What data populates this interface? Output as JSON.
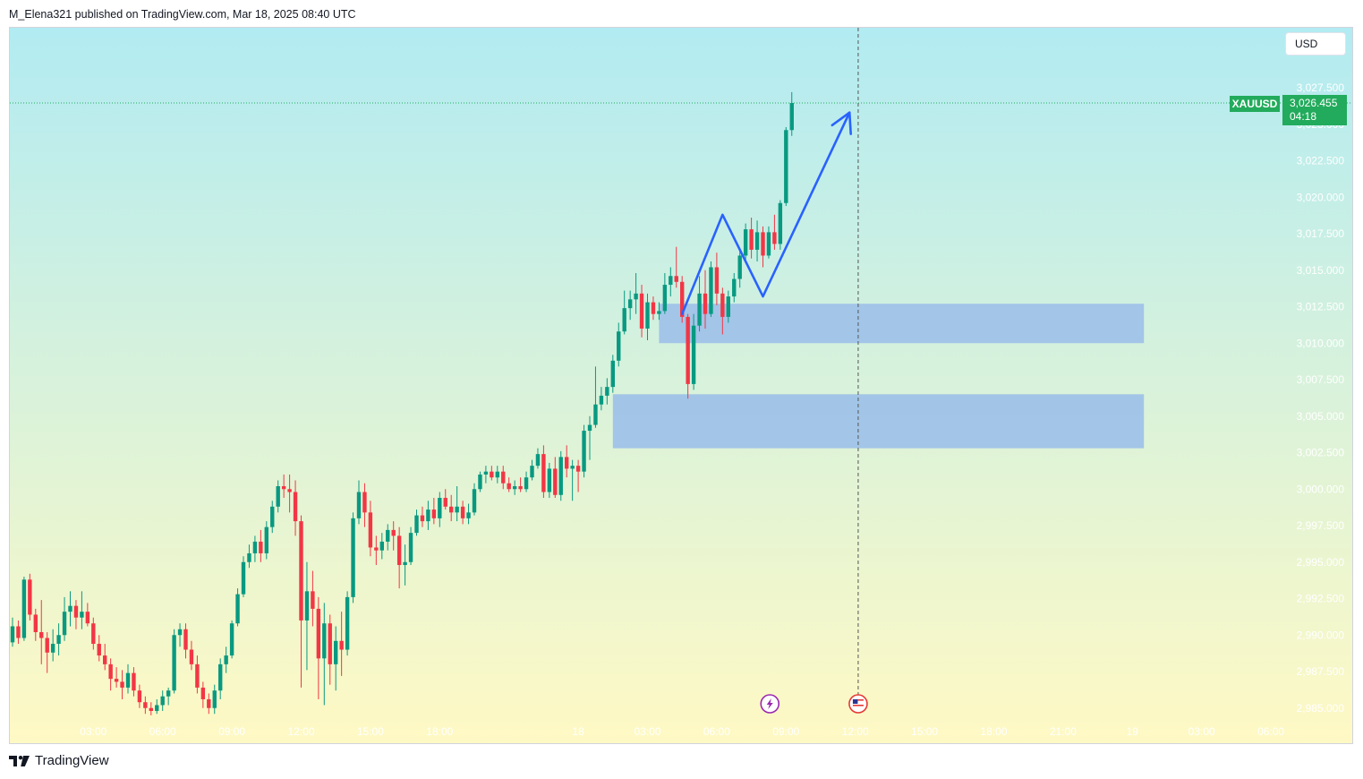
{
  "header": {
    "published_text": "M_Elena321 published on TradingView.com, Mar 18, 2025 08:40 UTC"
  },
  "currency_button": {
    "label": "USD"
  },
  "symbol": {
    "name": "XAUUSD",
    "last_price": "3,026.455",
    "countdown": "04:18"
  },
  "footer": {
    "brand": "TradingView",
    "logo_icon": "tradingview-logo-icon"
  },
  "colors": {
    "up": "#089981",
    "down": "#f23645",
    "zone": "#9fc2e8",
    "arrow": "#2962ff",
    "price_tag": "#22ab5c",
    "bg_top": "#b2ebf2",
    "bg_bottom": "#fff9c4"
  },
  "events": [
    {
      "icon": "lightning-event-icon",
      "time": "08:40"
    },
    {
      "icon": "us-flag-event-icon",
      "time": "12:00"
    }
  ],
  "chart_data": {
    "type": "candlestick",
    "symbol": "XAUUSD",
    "y_axis": {
      "ylim": [
        2984.5,
        3028.5
      ],
      "ticks": [
        3027.5,
        3025.0,
        3022.5,
        3020.0,
        3017.5,
        3015.0,
        3012.5,
        3010.0,
        3007.5,
        3005.0,
        3002.5,
        3000.0,
        2997.5,
        2995.0,
        2992.5,
        2990.0,
        2987.5,
        2985.0
      ],
      "tick_labels": [
        "3,027.500",
        "3,025.000",
        "3,022.500",
        "3,020.000",
        "3,017.500",
        "3,015.000",
        "3,012.500",
        "3,010.000",
        "3,007.500",
        "3,005.000",
        "3,002.500",
        "3,000.000",
        "2,997.500",
        "2,995.000",
        "2,992.500",
        "2,990.000",
        "2,987.500",
        "2,985.000"
      ]
    },
    "x_axis": {
      "ticks": [
        {
          "label": "03:00",
          "bar": 14
        },
        {
          "label": "06:00",
          "bar": 26
        },
        {
          "label": "09:00",
          "bar": 38
        },
        {
          "label": "12:00",
          "bar": 50
        },
        {
          "label": "15:00",
          "bar": 62
        },
        {
          "label": "18:00",
          "bar": 74
        },
        {
          "label": "18",
          "bar": 98
        },
        {
          "label": "03:00",
          "bar": 110
        },
        {
          "label": "06:00",
          "bar": 122
        },
        {
          "label": "09:00",
          "bar": 134
        },
        {
          "label": "12:00",
          "bar": 146
        },
        {
          "label": "15:00",
          "bar": 158
        },
        {
          "label": "18:00",
          "bar": 170
        },
        {
          "label": "21:00",
          "bar": 182
        },
        {
          "label": "19",
          "bar": 194
        },
        {
          "label": "03:00",
          "bar": 206
        },
        {
          "label": "06:00",
          "bar": 218
        }
      ]
    },
    "candles": [
      [
        2989.5,
        2991.2,
        2989.2,
        2990.6
      ],
      [
        2990.6,
        2991.0,
        2989.4,
        2989.8
      ],
      [
        2989.8,
        2994.0,
        2989.6,
        2993.8
      ],
      [
        2993.8,
        2994.2,
        2991.0,
        2991.4
      ],
      [
        2991.4,
        2991.8,
        2989.6,
        2990.2
      ],
      [
        2990.2,
        2992.4,
        2988.0,
        2989.8
      ],
      [
        2989.8,
        2990.2,
        2987.4,
        2988.8
      ],
      [
        2988.8,
        2990.4,
        2988.2,
        2989.4
      ],
      [
        2989.4,
        2990.8,
        2988.6,
        2990.0
      ],
      [
        2990.0,
        2992.6,
        2989.6,
        2991.6
      ],
      [
        2991.6,
        2993.0,
        2990.6,
        2992.0
      ],
      [
        2992.0,
        2992.4,
        2990.4,
        2991.2
      ],
      [
        2991.2,
        2993.0,
        2990.4,
        2991.6
      ],
      [
        2991.6,
        2992.2,
        2990.6,
        2990.8
      ],
      [
        2990.8,
        2991.2,
        2989.0,
        2989.4
      ],
      [
        2989.4,
        2990.0,
        2988.2,
        2988.6
      ],
      [
        2988.6,
        2989.4,
        2987.6,
        2988.0
      ],
      [
        2988.0,
        2988.4,
        2986.2,
        2987.0
      ],
      [
        2987.0,
        2987.8,
        2986.4,
        2986.8
      ],
      [
        2986.8,
        2987.6,
        2985.6,
        2986.4
      ],
      [
        2986.4,
        2988.0,
        2986.0,
        2987.4
      ],
      [
        2987.4,
        2987.8,
        2985.8,
        2986.2
      ],
      [
        2986.2,
        2986.6,
        2985.0,
        2985.4
      ],
      [
        2985.4,
        2985.8,
        2984.6,
        2985.0
      ],
      [
        2985.0,
        2985.4,
        2984.5,
        2984.8
      ],
      [
        2984.8,
        2985.6,
        2984.6,
        2985.2
      ],
      [
        2985.2,
        2986.2,
        2984.8,
        2985.8
      ],
      [
        2985.8,
        2986.4,
        2985.2,
        2986.2
      ],
      [
        2986.2,
        2990.4,
        2986.0,
        2990.0
      ],
      [
        2990.0,
        2990.8,
        2989.2,
        2990.4
      ],
      [
        2990.4,
        2990.8,
        2988.4,
        2989.0
      ],
      [
        2989.0,
        2989.6,
        2987.6,
        2988.0
      ],
      [
        2988.0,
        2988.6,
        2986.0,
        2986.4
      ],
      [
        2986.4,
        2986.8,
        2985.0,
        2985.6
      ],
      [
        2985.6,
        2986.0,
        2984.6,
        2985.0
      ],
      [
        2985.0,
        2986.6,
        2984.6,
        2986.2
      ],
      [
        2986.2,
        2988.4,
        2985.6,
        2988.0
      ],
      [
        2988.0,
        2989.2,
        2987.4,
        2988.6
      ],
      [
        2988.6,
        2991.0,
        2988.4,
        2990.8
      ],
      [
        2990.8,
        2993.2,
        2990.6,
        2992.8
      ],
      [
        2992.8,
        2995.4,
        2992.6,
        2995.0
      ],
      [
        2995.0,
        2996.2,
        2994.6,
        2995.6
      ],
      [
        2995.6,
        2996.8,
        2995.0,
        2996.4
      ],
      [
        2996.4,
        2997.2,
        2995.0,
        2995.6
      ],
      [
        2995.6,
        2997.8,
        2995.2,
        2997.4
      ],
      [
        2997.4,
        2999.2,
        2997.0,
        2998.8
      ],
      [
        2998.8,
        3000.6,
        2998.4,
        3000.2
      ],
      [
        3000.2,
        3001.0,
        2999.4,
        3000.0
      ],
      [
        3000.0,
        3001.0,
        2998.4,
        2999.8
      ],
      [
        2999.8,
        3000.6,
        2996.8,
        2997.8
      ],
      [
        2997.8,
        2998.2,
        2986.4,
        2991.0
      ],
      [
        2991.0,
        2995.0,
        2987.6,
        2993.0
      ],
      [
        2993.0,
        2994.4,
        2990.6,
        2991.8
      ],
      [
        2991.8,
        2992.6,
        2985.6,
        2988.4
      ],
      [
        2988.4,
        2992.2,
        2985.2,
        2990.8
      ],
      [
        2990.8,
        2991.4,
        2986.6,
        2988.0
      ],
      [
        2988.0,
        2990.6,
        2986.2,
        2989.6
      ],
      [
        2989.6,
        2991.6,
        2987.2,
        2989.0
      ],
      [
        2989.0,
        2993.0,
        2988.6,
        2992.6
      ],
      [
        2992.6,
        2998.4,
        2992.2,
        2998.0
      ],
      [
        2998.0,
        3000.6,
        2997.6,
        2999.8
      ],
      [
        2999.8,
        3000.4,
        2997.4,
        2998.4
      ],
      [
        2998.4,
        2999.2,
        2995.4,
        2996.0
      ],
      [
        2996.0,
        2996.8,
        2994.8,
        2995.8
      ],
      [
        2995.8,
        2997.0,
        2995.2,
        2996.4
      ],
      [
        2996.4,
        2997.6,
        2995.8,
        2997.2
      ],
      [
        2997.2,
        2997.8,
        2995.8,
        2996.8
      ],
      [
        2996.8,
        2997.4,
        2993.2,
        2994.8
      ],
      [
        2994.8,
        2996.2,
        2993.4,
        2995.0
      ],
      [
        2995.0,
        2997.4,
        2994.8,
        2997.0
      ],
      [
        2997.0,
        2998.6,
        2996.8,
        2998.2
      ],
      [
        2998.2,
        2998.8,
        2997.4,
        2997.8
      ],
      [
        2997.8,
        2999.2,
        2997.2,
        2998.6
      ],
      [
        2998.6,
        2999.4,
        2997.6,
        2998.0
      ],
      [
        2998.0,
        2999.8,
        2997.4,
        2999.4
      ],
      [
        2999.4,
        3000.0,
        2998.6,
        2998.8
      ],
      [
        2998.8,
        2999.6,
        2997.8,
        2998.4
      ],
      [
        2998.4,
        3000.2,
        2997.8,
        2998.8
      ],
      [
        2998.8,
        2999.2,
        2997.6,
        2998.0
      ],
      [
        2998.0,
        2999.0,
        2997.6,
        2998.4
      ],
      [
        2998.4,
        3000.4,
        2998.2,
        3000.0
      ],
      [
        3000.0,
        3001.2,
        2999.8,
        3001.0
      ],
      [
        3001.0,
        3001.6,
        3000.4,
        3001.2
      ],
      [
        3001.2,
        3001.6,
        3000.6,
        3000.8
      ],
      [
        3000.8,
        3001.6,
        3000.4,
        3001.2
      ],
      [
        3001.2,
        3001.6,
        3000.0,
        3000.4
      ],
      [
        3000.4,
        3000.8,
        2999.8,
        3000.0
      ],
      [
        3000.0,
        3000.6,
        2999.6,
        3000.2
      ],
      [
        3000.2,
        3000.8,
        2999.8,
        3000.0
      ],
      [
        3000.0,
        3001.2,
        2999.8,
        3000.8
      ],
      [
        3000.8,
        3002.0,
        3000.6,
        3001.6
      ],
      [
        3001.6,
        3002.8,
        3001.4,
        3002.4
      ],
      [
        3002.4,
        3003.0,
        2999.4,
        2999.8
      ],
      [
        2999.8,
        3001.8,
        2999.4,
        3001.4
      ],
      [
        3001.4,
        3002.2,
        2999.4,
        2999.6
      ],
      [
        2999.6,
        3002.6,
        2999.2,
        3002.2
      ],
      [
        3002.2,
        3003.0,
        3000.8,
        3001.4
      ],
      [
        3001.4,
        3002.0,
        2999.2,
        3001.6
      ],
      [
        3001.6,
        3002.0,
        2999.8,
        3001.2
      ],
      [
        3001.2,
        3004.4,
        3000.8,
        3004.0
      ],
      [
        3004.0,
        3005.0,
        3002.0,
        3004.4
      ],
      [
        3004.4,
        3008.4,
        3004.2,
        3005.8
      ],
      [
        3005.8,
        3007.0,
        3005.4,
        3006.4
      ],
      [
        3006.4,
        3007.6,
        3005.8,
        3007.0
      ],
      [
        3007.0,
        3009.2,
        3006.6,
        3008.8
      ],
      [
        3008.8,
        3011.4,
        3008.4,
        3010.8
      ],
      [
        3010.8,
        3013.6,
        3010.6,
        3012.4
      ],
      [
        3012.4,
        3013.6,
        3011.6,
        3013.0
      ],
      [
        3013.0,
        3014.8,
        3012.0,
        3013.4
      ],
      [
        3013.4,
        3014.0,
        3010.4,
        3011.0
      ],
      [
        3011.0,
        3013.4,
        3010.2,
        3012.8
      ],
      [
        3012.8,
        3013.2,
        3011.6,
        3012.0
      ],
      [
        3012.0,
        3012.8,
        3011.6,
        3012.2
      ],
      [
        3012.2,
        3014.8,
        3012.0,
        3014.0
      ],
      [
        3014.0,
        3015.2,
        3013.2,
        3014.6
      ],
      [
        3014.6,
        3016.6,
        3013.8,
        3014.2
      ],
      [
        3014.2,
        3014.6,
        3011.4,
        3011.8
      ],
      [
        3011.8,
        3012.0,
        3006.2,
        3007.2
      ],
      [
        3007.2,
        3012.0,
        3006.8,
        3011.2
      ],
      [
        3011.2,
        3014.6,
        3010.8,
        3013.4
      ],
      [
        3013.4,
        3015.0,
        3011.0,
        3012.0
      ],
      [
        3012.0,
        3015.6,
        3011.8,
        3015.2
      ],
      [
        3015.2,
        3016.2,
        3012.6,
        3013.4
      ],
      [
        3013.4,
        3013.8,
        3010.6,
        3011.8
      ],
      [
        3011.8,
        3013.6,
        3011.4,
        3013.2
      ],
      [
        3013.2,
        3014.8,
        3012.8,
        3014.4
      ],
      [
        3014.4,
        3016.4,
        3013.8,
        3016.0
      ],
      [
        3016.0,
        3018.2,
        3015.6,
        3017.8
      ],
      [
        3017.8,
        3018.6,
        3015.8,
        3016.4
      ],
      [
        3016.4,
        3018.4,
        3015.6,
        3017.6
      ],
      [
        3017.6,
        3018.0,
        3015.2,
        3016.0
      ],
      [
        3016.0,
        3018.0,
        3015.8,
        3017.6
      ],
      [
        3017.6,
        3018.8,
        3016.4,
        3016.8
      ],
      [
        3016.8,
        3019.8,
        3016.4,
        3019.6
      ],
      [
        3019.6,
        3024.8,
        3019.4,
        3024.6
      ],
      [
        3024.6,
        3027.2,
        3024.2,
        3026.455
      ]
    ],
    "zones": [
      {
        "from_bar": 112,
        "to_bar": 196,
        "top": 3012.7,
        "bottom": 3010.0
      },
      {
        "from_bar": 104,
        "to_bar": 196,
        "top": 3006.5,
        "bottom": 3002.8
      }
    ],
    "projection_path": [
      {
        "bar": 116,
        "price": 3012.0
      },
      {
        "bar": 123,
        "price": 3018.8
      },
      {
        "bar": 130,
        "price": 3013.2
      },
      {
        "bar": 145,
        "price": 3025.8
      }
    ],
    "current_price": 3026.455,
    "vertical_marker_bar": 146.5
  }
}
